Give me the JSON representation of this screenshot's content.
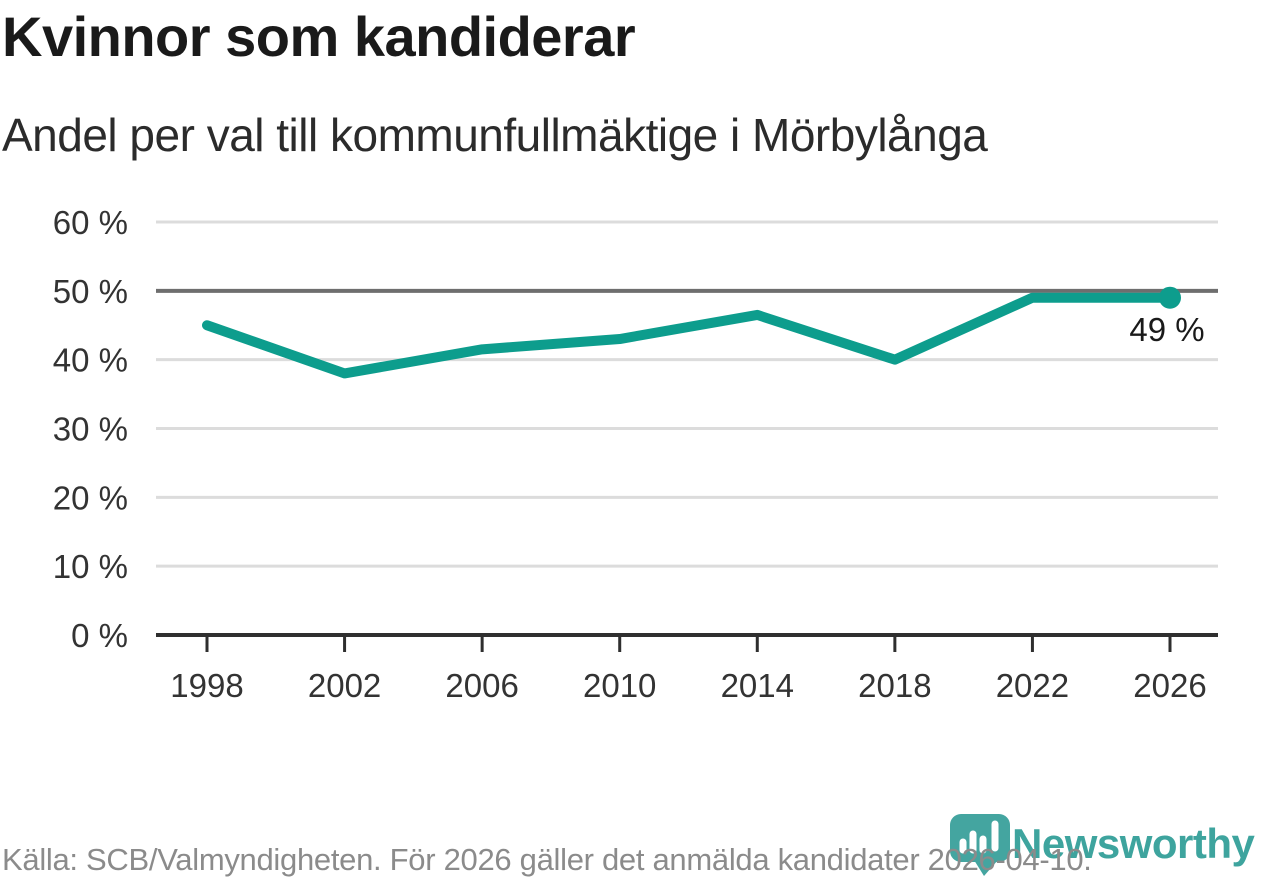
{
  "chart_data": {
    "type": "line",
    "title": "Kvinnor som kandiderar",
    "subtitle": "Andel per val till kommunfullmäktige i Mörbylånga",
    "x": [
      "1998",
      "2002",
      "2006",
      "2010",
      "2014",
      "2018",
      "2022",
      "2026"
    ],
    "values": [
      45,
      38,
      41.5,
      43,
      46.5,
      40,
      49,
      49
    ],
    "ylim": [
      0,
      60
    ],
    "yticks": [
      0,
      10,
      20,
      30,
      40,
      50,
      60
    ],
    "ytick_labels": [
      "0 %",
      "10 %",
      "20 %",
      "30 %",
      "40 %",
      "50 %",
      "60 %"
    ],
    "emphasized_gridline": 50,
    "end_point_label": "49 %",
    "grid": true,
    "legend": "none",
    "line_color": "#0d9d8d",
    "source": "Källa: SCB/Valmyndigheten. För 2026 gäller det anmälda kandidater 2026-04-10."
  },
  "logo": {
    "brand": "Newsworthy"
  },
  "colors": {
    "accent_teal": "#0d9d8d",
    "logo_teal": "#44a5a0",
    "grid_light": "#dcdcdc",
    "grid_emphasis": "#6e6e6e",
    "axis": "#2f2f2f",
    "text_dark": "#1a1a1a",
    "text_axis": "#333333",
    "text_muted": "#8b8b8b"
  }
}
